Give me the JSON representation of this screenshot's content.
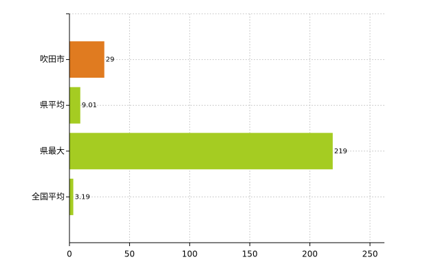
{
  "chart_data": {
    "type": "bar",
    "orientation": "horizontal",
    "categories": [
      "吹田市",
      "県平均",
      "県最大",
      "全国平均"
    ],
    "values": [
      29,
      9.01,
      219,
      3.19
    ],
    "colors": [
      "#e07b20",
      "#a5cc22",
      "#a5cc22",
      "#a5cc22"
    ],
    "xlim": [
      0,
      262
    ],
    "xticks": [
      0,
      50,
      100,
      150,
      200,
      250
    ],
    "grid": true
  }
}
